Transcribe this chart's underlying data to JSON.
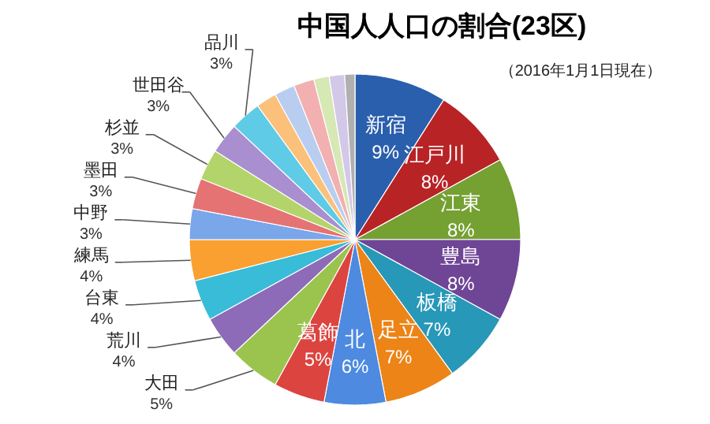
{
  "chart_data": {
    "type": "pie",
    "title": "中国人人口の割合(23区)",
    "subtitle": "（2016年1月1日現在）",
    "categories": [
      "新宿",
      "江戸川",
      "江東",
      "豊島",
      "板橋",
      "足立",
      "北",
      "葛飾",
      "大田",
      "荒川",
      "台東",
      "練馬",
      "中野",
      "墨田",
      "杉並",
      "世田谷",
      "品川",
      null,
      null,
      null,
      null,
      null,
      null
    ],
    "values": [
      9,
      8,
      8,
      8,
      7,
      7,
      6,
      5,
      5,
      4,
      4,
      4,
      3,
      3,
      3,
      3,
      3,
      2,
      2,
      2,
      1.5,
      1.5,
      1
    ],
    "value_labels": [
      "9%",
      "8%",
      "8%",
      "8%",
      "7%",
      "7%",
      "6%",
      "5%",
      "5%",
      "4%",
      "4%",
      "4%",
      "3%",
      "3%",
      "3%",
      "3%",
      "3%",
      null,
      null,
      null,
      null,
      null,
      null
    ],
    "colors": [
      "#2a5fad",
      "#b82326",
      "#75a032",
      "#6f4596",
      "#2798b8",
      "#ec8417",
      "#4d8ae0",
      "#dc4440",
      "#9bc44e",
      "#8d6bb8",
      "#38bcd8",
      "#f9a030",
      "#7aa6ea",
      "#e57373",
      "#b3d46a",
      "#a98ed0",
      "#5fcbe6",
      "#fbc07a",
      "#b8cdf0",
      "#f2b0b0",
      "#d6e8b4",
      "#d3c8e8",
      "#b0b0b0"
    ]
  }
}
